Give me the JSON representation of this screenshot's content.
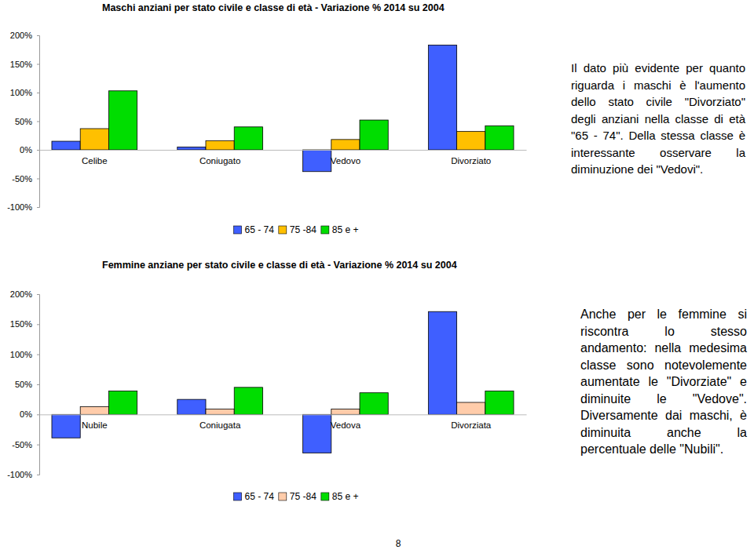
{
  "chart_data": [
    {
      "type": "bar",
      "title": "Maschi anziani per stato civile e classe di età - Variazione % 2014 su 2004",
      "categories": [
        "Celibe",
        "Coniugato",
        "Vedovo",
        "Divorziato"
      ],
      "series": [
        {
          "name": "65 - 74",
          "color": "#3f5fff",
          "values": [
            15,
            5,
            -38,
            183
          ]
        },
        {
          "name": "75 -84",
          "color": "#ffc000",
          "values": [
            37,
            16,
            18,
            32
          ]
        },
        {
          "name": "85 e +",
          "color": "#00dd00",
          "values": [
            103,
            40,
            52,
            42
          ]
        }
      ],
      "ylim": [
        -100,
        200
      ],
      "yticks": [
        {
          "value": -100,
          "label": "-100%"
        },
        {
          "value": -50,
          "label": "-50%"
        },
        {
          "value": 0,
          "label": "0%"
        },
        {
          "value": 50,
          "label": "50%"
        },
        {
          "value": 100,
          "label": "100%"
        },
        {
          "value": 150,
          "label": "150%"
        },
        {
          "value": 200,
          "label": "200%"
        }
      ],
      "grid": false,
      "legend": "bottom",
      "annotation": "Il dato più evidente per quanto riguarda i maschi è l'aumento dello stato civile \"Divorziato\" degli anziani nella classe di età \"65 - 74\". Della stessa classe è interessante osservare la diminuzione dei \"Vedovi\"."
    },
    {
      "type": "bar",
      "title": "Femmine anziane per stato civile e classe di età - Variazione % 2014 su 2004",
      "categories": [
        "Nubile",
        "Coniugata",
        "Vedova",
        "Divorziata"
      ],
      "series": [
        {
          "name": "65 - 74",
          "color": "#3f5fff",
          "values": [
            -39,
            25,
            -64,
            171
          ]
        },
        {
          "name": "75 -84",
          "color": "#ffccaa",
          "values": [
            13,
            9,
            9,
            20
          ]
        },
        {
          "name": "85 e +",
          "color": "#00dd00",
          "values": [
            39,
            45,
            36,
            39
          ]
        }
      ],
      "ylim": [
        -100,
        200
      ],
      "yticks": [
        {
          "value": -100,
          "label": "-100%"
        },
        {
          "value": -50,
          "label": "-50%"
        },
        {
          "value": 0,
          "label": "0%"
        },
        {
          "value": 50,
          "label": "50%"
        },
        {
          "value": 100,
          "label": "100%"
        },
        {
          "value": 150,
          "label": "150%"
        },
        {
          "value": 200,
          "label": "200%"
        }
      ],
      "grid": false,
      "legend": "bottom",
      "annotation": "Anche per le femmine si riscontra lo stesso andamento: nella medesima classe sono notevolemente aumentate le \"Divorziate\" e diminuite le \"Vedove\". Diversamente dai maschi, è diminuita anche la percentuale delle \"Nubili\"."
    }
  ],
  "page_number": 8
}
